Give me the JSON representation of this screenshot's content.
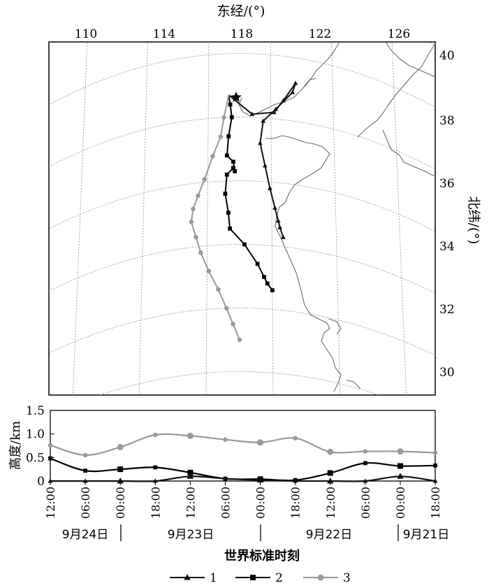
{
  "chart_data": [
    {
      "type": "line",
      "subtype": "map-trajectory",
      "xlabel": "东经/(°)",
      "ylabel": "北纬/(°)",
      "x_ticks": [
        "110",
        "114",
        "118",
        "122",
        "126"
      ],
      "y_ticks": [
        "40",
        "38",
        "36",
        "34",
        "32",
        "30"
      ],
      "xlim": [
        107.8,
        128.2
      ],
      "ylim": [
        29.3,
        40.4
      ],
      "grid": true,
      "series": [
        {
          "name": "1",
          "color": "#111111",
          "marker": "triangle",
          "lon": [
            117.3,
            118.8,
            120.2,
            120.8,
            121.6,
            121.4,
            120.3,
            119.5,
            119.3,
            119.6,
            119.9,
            120.2,
            120.4,
            120.5,
            120.7
          ],
          "lat": [
            38.7,
            38.1,
            38.2,
            38.6,
            39.2,
            38.9,
            38.3,
            37.9,
            37.2,
            36.5,
            35.8,
            35.2,
            34.8,
            34.6,
            34.3
          ]
        },
        {
          "name": "2",
          "color": "#000000",
          "marker": "square",
          "lon": [
            117.3,
            117.4,
            117.5,
            117.3,
            117.2,
            117.6,
            117.7,
            117.6,
            117.2,
            117.1,
            117.3,
            117.4,
            118.3,
            119.1,
            119.5,
            119.7,
            120.0
          ],
          "lat": [
            38.7,
            38.4,
            38.0,
            37.4,
            36.8,
            36.6,
            36.3,
            36.4,
            36.2,
            35.6,
            35.0,
            34.5,
            34.0,
            33.4,
            33.0,
            32.8,
            32.6
          ]
        },
        {
          "name": "3",
          "color": "#999999",
          "marker": "circle",
          "lon": [
            117.3,
            117.0,
            116.8,
            116.3,
            115.8,
            115.4,
            115.1,
            115.0,
            115.3,
            115.6,
            116.1,
            116.7,
            117.2,
            117.6,
            118.0
          ],
          "lat": [
            38.7,
            38.0,
            37.4,
            36.8,
            36.1,
            35.6,
            35.2,
            34.8,
            34.3,
            33.8,
            33.2,
            32.6,
            32.0,
            31.5,
            31.0
          ]
        }
      ]
    },
    {
      "type": "line",
      "ylabel": "高度/km",
      "xlabel": "世界标准时刻",
      "ylim": [
        0,
        1.5
      ],
      "y_ticks": [
        "1.5",
        "1.0",
        "0.5",
        "0"
      ],
      "x_ticks": [
        "12:00",
        "06:00",
        "00:00",
        "18:00",
        "12:00",
        "06:00",
        "00:00",
        "18:00",
        "12:00",
        "06:00",
        "00:00",
        "18:00"
      ],
      "hours_before_start": [
        0,
        6,
        12,
        18,
        24,
        30,
        36,
        42,
        48,
        54,
        60,
        66
      ],
      "day_labels": [
        "9月24日",
        "9月23日",
        "9月22日",
        "9月21日"
      ],
      "legend": [
        "1",
        "2",
        "3"
      ],
      "legend_position": "bottom",
      "series": [
        {
          "name": "1",
          "color": "#111111",
          "marker": "triangle",
          "hours": [
            0,
            6,
            12,
            18,
            24,
            30,
            36,
            42,
            48,
            54,
            60,
            66
          ],
          "values": [
            0.0,
            0.0,
            0.0,
            0.0,
            0.1,
            0.05,
            0.02,
            0.0,
            0.0,
            0.0,
            0.1,
            0.0
          ]
        },
        {
          "name": "2",
          "color": "#000000",
          "marker": "square",
          "hours": [
            0,
            6,
            12,
            18,
            24,
            30,
            36,
            42,
            48,
            54,
            60,
            66
          ],
          "values": [
            0.48,
            0.22,
            0.25,
            0.29,
            0.18,
            0.05,
            0.04,
            0.02,
            0.17,
            0.38,
            0.32,
            0.33
          ]
        },
        {
          "name": "3",
          "color": "#999999",
          "marker": "circle",
          "hours": [
            0,
            6,
            12,
            18,
            24,
            30,
            36,
            42,
            48,
            54,
            60,
            66
          ],
          "values": [
            0.76,
            0.55,
            0.72,
            0.98,
            0.96,
            0.88,
            0.82,
            0.91,
            0.62,
            0.63,
            0.63,
            0.6
          ]
        }
      ]
    }
  ]
}
